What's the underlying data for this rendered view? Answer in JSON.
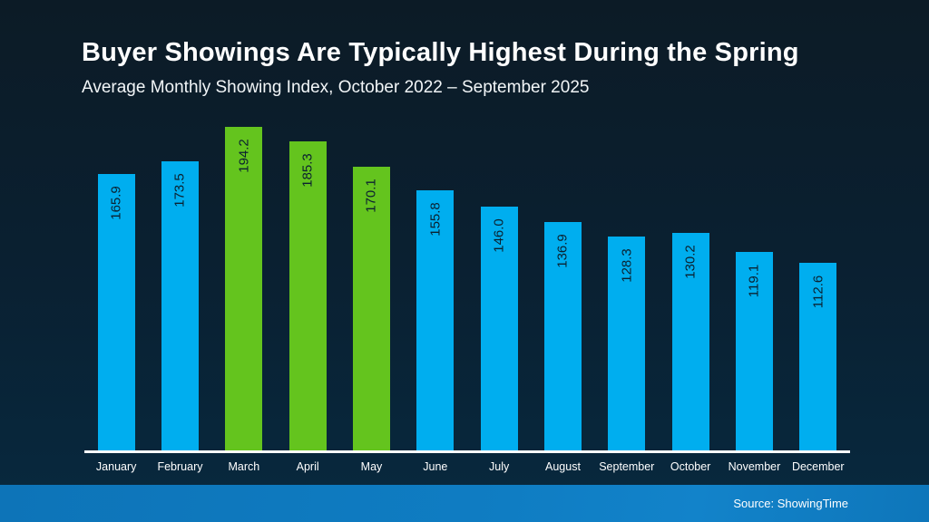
{
  "slide": {
    "title": "Buyer Showings Are Typically Highest During the Spring",
    "subtitle": "Average Monthly Showing Index, October 2022 – September 2025",
    "source": "Source: ShowingTime"
  },
  "colors": {
    "bar_default": "#00AEEF",
    "bar_highlight": "#64C41E",
    "value_label": "#0b2130",
    "axis_line": "#ffffff",
    "background_top": "#0c1b26",
    "background_bottom": "#07293f",
    "footer_bar": "#0f7dc3",
    "text": "#ffffff"
  },
  "chart_data": {
    "type": "bar",
    "title": "Buyer Showings Are Typically Highest During the Spring",
    "subtitle": "Average Monthly Showing Index, October 2022 – September 2025",
    "categories": [
      "January",
      "February",
      "March",
      "April",
      "May",
      "June",
      "July",
      "August",
      "September",
      "October",
      "November",
      "December"
    ],
    "values": [
      165.9,
      173.5,
      194.2,
      185.3,
      170.1,
      155.8,
      146.0,
      136.9,
      128.3,
      130.2,
      119.1,
      112.6
    ],
    "bar_labels": [
      "165.9",
      "173.5",
      "194.2",
      "185.3",
      "170.1",
      "155.8",
      "146.0",
      "136.9",
      "128.3",
      "130.2",
      "119.1",
      "112.6"
    ],
    "highlighted_categories": [
      "March",
      "April",
      "May"
    ],
    "xlabel": "",
    "ylabel": "",
    "ylim": [
      0,
      200
    ],
    "grid": false,
    "legend": false,
    "value_labels_rotation": -90,
    "source": "Source: ShowingTime"
  }
}
